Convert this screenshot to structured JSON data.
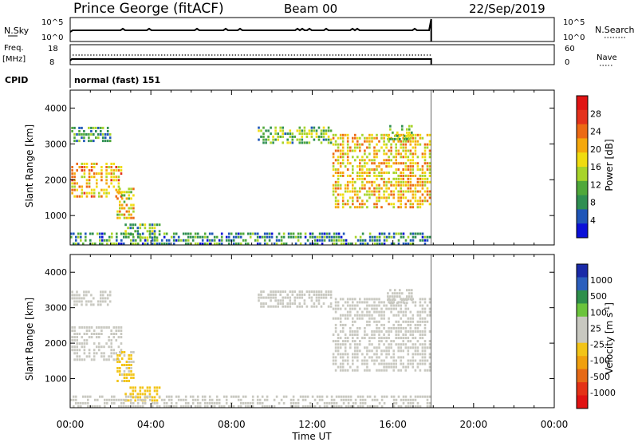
{
  "header": {
    "station": "Prince George (fitACF)",
    "beam": "Beam 00",
    "date": "22/Sep/2019"
  },
  "strips": {
    "nsky_label": "N.Sky",
    "nsky_ticks": [
      "10^5",
      "10^0"
    ],
    "nsearch_label": "N.Search",
    "nsearch_ticks": [
      "10^5",
      "10^0"
    ],
    "freq_label": "Freq.",
    "freq_unit": "[MHz]",
    "freq_ticks": [
      "18",
      "8"
    ],
    "nave_label": "Nave",
    "nave_ticks": [
      "60",
      "0"
    ],
    "cpid_label": "CPID",
    "cpid_value": "normal (fast) 151"
  },
  "x_axis": {
    "label": "Time UT",
    "ticks": [
      "00:00",
      "04:00",
      "08:00",
      "12:00",
      "16:00",
      "20:00",
      "00:00"
    ]
  },
  "colors": {
    "power": [
      "#0b10d8",
      "#1f56b8",
      "#2f8f52",
      "#4fa83a",
      "#a8d42a",
      "#f0dc10",
      "#f5a80c",
      "#ec6a14",
      "#e4321c",
      "#e01414"
    ],
    "velocity": [
      "#1a2aa8",
      "#2b5fbd",
      "#2e8f4b",
      "#6bc43c",
      "#c8c8c0",
      "#c8c8c0",
      "#f2c418",
      "#f0a00e",
      "#e66a16",
      "#e43216",
      "#e01212"
    ]
  },
  "chart_data": [
    {
      "type": "heatmap",
      "name": "power",
      "ylabel": "Slant Range [km]",
      "xlabel": "",
      "xlim_hours": [
        0,
        24
      ],
      "ylim": [
        180,
        4500
      ],
      "y_ticks": [
        1000,
        2000,
        3000,
        4000
      ],
      "colorbar_label": "Power [dB]",
      "colorbar_ticks": [
        "28",
        "24",
        "20",
        "16",
        "12",
        "8",
        "4"
      ],
      "colorbar_range": [
        0,
        30
      ],
      "data_end_hour": 17.9,
      "echo_regions": [
        {
          "t0": 0.05,
          "t1": 2.05,
          "r0": 3050,
          "r1": 3500,
          "value": 9
        },
        {
          "t0": 0.05,
          "t1": 2.6,
          "r0": 1500,
          "r1": 2500,
          "value": 19
        },
        {
          "t0": 2.3,
          "t1": 3.2,
          "r0": 900,
          "r1": 1800,
          "value": 17
        },
        {
          "t0": 2.7,
          "t1": 4.5,
          "r0": 350,
          "r1": 800,
          "value": 10
        },
        {
          "t0": 9.3,
          "t1": 13.0,
          "r0": 3000,
          "r1": 3500,
          "value": 11
        },
        {
          "t0": 13.0,
          "t1": 17.9,
          "r0": 1200,
          "r1": 3300,
          "value": 18
        },
        {
          "t0": 15.7,
          "t1": 17.0,
          "r0": 3100,
          "r1": 3550,
          "value": 12
        },
        {
          "t0": 0.0,
          "t1": 17.9,
          "r0": 180,
          "r1": 550,
          "value": 8
        }
      ]
    },
    {
      "type": "heatmap",
      "name": "velocity",
      "ylabel": "Slant Range [km]",
      "xlabel": "Time UT",
      "xlim_hours": [
        0,
        24
      ],
      "ylim": [
        180,
        4500
      ],
      "y_ticks": [
        1000,
        2000,
        3000,
        4000
      ],
      "colorbar_label": "Velocity [m s^-1]",
      "colorbar_ticks": [
        "1000",
        "500",
        "100",
        "25",
        "-25",
        "-100",
        "-500",
        "-1000"
      ],
      "colorbar_range": [
        -1200,
        1200
      ],
      "data_end_hour": 17.9,
      "echo_regions": [
        {
          "t0": 0.05,
          "t1": 2.05,
          "r0": 3050,
          "r1": 3500,
          "value": 0
        },
        {
          "t0": 0.05,
          "t1": 2.6,
          "r0": 1500,
          "r1": 2500,
          "value": 0
        },
        {
          "t0": 2.3,
          "t1": 3.2,
          "r0": 900,
          "r1": 1800,
          "value": -140
        },
        {
          "t0": 2.7,
          "t1": 4.5,
          "r0": 350,
          "r1": 800,
          "value": -200
        },
        {
          "t0": 9.3,
          "t1": 13.0,
          "r0": 3000,
          "r1": 3500,
          "value": 0
        },
        {
          "t0": 13.0,
          "t1": 17.9,
          "r0": 1200,
          "r1": 3300,
          "value": 0
        },
        {
          "t0": 15.7,
          "t1": 17.0,
          "r0": 3100,
          "r1": 3550,
          "value": 60
        },
        {
          "t0": 0.0,
          "t1": 17.9,
          "r0": 180,
          "r1": 550,
          "value": 0
        }
      ]
    }
  ]
}
